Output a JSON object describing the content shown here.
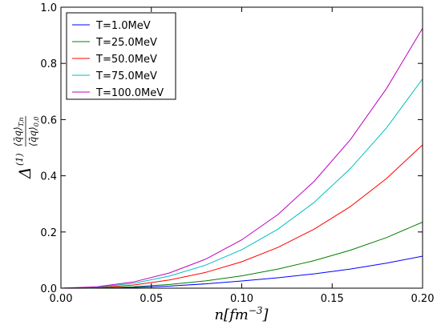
{
  "chart_data": {
    "type": "line",
    "xlabel": "n[fm^{-3}]",
    "ylabel": "Δ^{(1)} ⟨q̄q⟩_{T,n} / ⟨q̄q⟩_{0,0}",
    "xlim": [
      0.0,
      0.2
    ],
    "ylim": [
      0.0,
      1.0
    ],
    "x_ticks": [
      "0.00",
      "0.05",
      "0.10",
      "0.15",
      "0.20"
    ],
    "y_ticks": [
      "0.0",
      "0.2",
      "0.4",
      "0.6",
      "0.8",
      "1.0"
    ],
    "grid": false,
    "legend_position": "upper-left",
    "x": [
      0.0,
      0.02,
      0.04,
      0.06,
      0.08,
      0.1,
      0.12,
      0.14,
      0.16,
      0.18,
      0.2
    ],
    "series": [
      {
        "name": "T=1.0MeV",
        "color": "#0000ff",
        "values": [
          0.0,
          0.0003,
          0.0025,
          0.0075,
          0.0155,
          0.0255,
          0.037,
          0.051,
          0.068,
          0.089,
          0.114
        ]
      },
      {
        "name": "T=25.0MeV",
        "color": "#008000",
        "values": [
          0.0,
          0.0009,
          0.005,
          0.013,
          0.026,
          0.044,
          0.068,
          0.098,
          0.135,
          0.18,
          0.235
        ]
      },
      {
        "name": "T=50.0MeV",
        "color": "#ff0000",
        "values": [
          0.0,
          0.002,
          0.011,
          0.029,
          0.056,
          0.094,
          0.145,
          0.21,
          0.29,
          0.39,
          0.51
        ]
      },
      {
        "name": "T=75.0MeV",
        "color": "#00bfbf",
        "values": [
          0.0,
          0.0035,
          0.017,
          0.043,
          0.082,
          0.137,
          0.21,
          0.305,
          0.425,
          0.57,
          0.745
        ]
      },
      {
        "name": "T=100.0MeV",
        "color": "#bf00bf",
        "values": [
          0.0,
          0.005,
          0.022,
          0.054,
          0.103,
          0.172,
          0.262,
          0.38,
          0.528,
          0.71,
          0.925
        ]
      }
    ]
  }
}
